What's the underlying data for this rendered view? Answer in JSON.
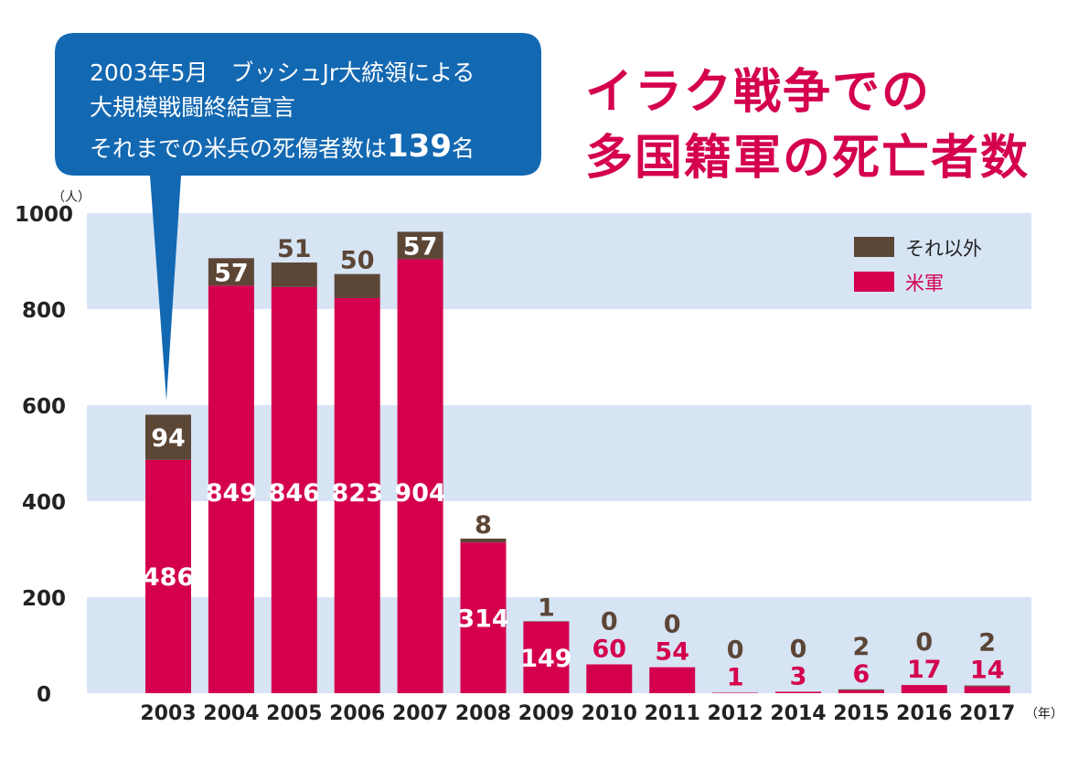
{
  "colors": {
    "us": "#D4004E",
    "other": "#5C4636",
    "band": "#D6E4F4",
    "callout": "#1368B2",
    "title": "#D4004E"
  },
  "title": {
    "line1": "イラク戦争での",
    "line2": "多国籍軍の死亡者数"
  },
  "callout": {
    "line1": "2003年5月　ブッシュJr大統領による",
    "line2": "大規模戦闘終結宣言",
    "line3_prefix": "それまでの米兵の死傷者数は",
    "line3_number": "139",
    "line3_suffix": "名"
  },
  "chart_data": {
    "type": "bar",
    "stacked": true,
    "title": "イラク戦争での多国籍軍の死亡者数",
    "ylabel": "（人）",
    "xlabel": "（年）",
    "ylim": [
      0,
      1000
    ],
    "yticks": [
      "0",
      "200",
      "400",
      "600",
      "800",
      "1000"
    ],
    "categories": [
      "2003",
      "2004",
      "2005",
      "2006",
      "2007",
      "2008",
      "2009",
      "2010",
      "2011",
      "2012",
      "2014",
      "2015",
      "2016",
      "2017"
    ],
    "series": [
      {
        "name": "米軍",
        "values": [
          486,
          849,
          846,
          823,
          904,
          314,
          149,
          60,
          54,
          1,
          3,
          6,
          17,
          14
        ]
      },
      {
        "name": "それ以外",
        "values": [
          94,
          57,
          51,
          50,
          57,
          8,
          1,
          0,
          0,
          0,
          0,
          2,
          0,
          2
        ]
      }
    ],
    "legend": [
      "それ以外",
      "米軍"
    ],
    "legend_position": "top-right"
  }
}
